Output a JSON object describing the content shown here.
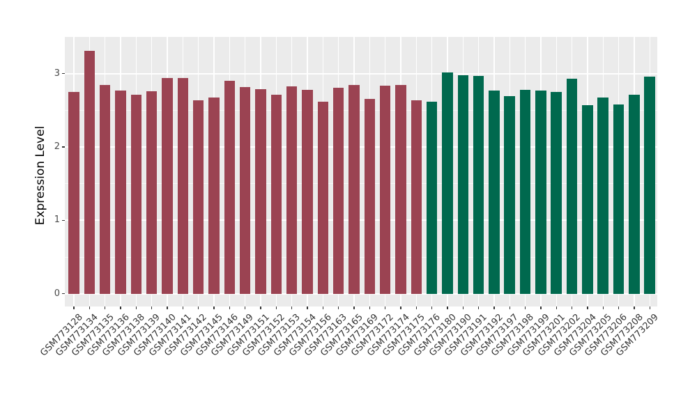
{
  "chart_data": {
    "type": "bar",
    "title": "",
    "xlabel": "",
    "ylabel": "Expression Level",
    "ylim": [
      0,
      3.5
    ],
    "yticks": [
      0,
      1,
      2,
      3
    ],
    "minor_gridlines": [
      0.5,
      1.5,
      2.5
    ],
    "grid": true,
    "legend_position": "none",
    "panel_bg": "#EBEBEB",
    "grid_color": "#FFFFFF",
    "group_colors": {
      "group1": "#9B4352",
      "group2": "#00694E"
    },
    "categories": [
      "GSM773128",
      "GSM773134",
      "GSM773135",
      "GSM773136",
      "GSM773138",
      "GSM773139",
      "GSM773140",
      "GSM773141",
      "GSM773142",
      "GSM773145",
      "GSM773146",
      "GSM773149",
      "GSM773151",
      "GSM773152",
      "GSM773153",
      "GSM773154",
      "GSM773156",
      "GSM773163",
      "GSM773165",
      "GSM773169",
      "GSM773172",
      "GSM773174",
      "GSM773175",
      "GSM773176",
      "GSM773180",
      "GSM773190",
      "GSM773191",
      "GSM773192",
      "GSM773197",
      "GSM773198",
      "GSM773199",
      "GSM773201",
      "GSM773202",
      "GSM773204",
      "GSM773205",
      "GSM773206",
      "GSM773208",
      "GSM773209"
    ],
    "values": [
      2.75,
      3.31,
      2.85,
      2.77,
      2.71,
      2.76,
      2.94,
      2.94,
      2.64,
      2.67,
      2.9,
      2.82,
      2.79,
      2.71,
      2.83,
      2.78,
      2.62,
      2.81,
      2.85,
      2.66,
      2.84,
      2.85,
      2.64,
      2.62,
      3.02,
      2.98,
      2.97,
      2.77,
      2.69,
      2.78,
      2.77,
      2.75,
      2.93,
      2.57,
      2.67,
      2.58,
      2.71,
      2.96
    ],
    "bar_groups": [
      "group1",
      "group1",
      "group1",
      "group1",
      "group1",
      "group1",
      "group1",
      "group1",
      "group1",
      "group1",
      "group1",
      "group1",
      "group1",
      "group1",
      "group1",
      "group1",
      "group1",
      "group1",
      "group1",
      "group1",
      "group1",
      "group1",
      "group1",
      "group2",
      "group2",
      "group2",
      "group2",
      "group2",
      "group2",
      "group2",
      "group2",
      "group2",
      "group2",
      "group2",
      "group2",
      "group2",
      "group2",
      "group2"
    ]
  }
}
